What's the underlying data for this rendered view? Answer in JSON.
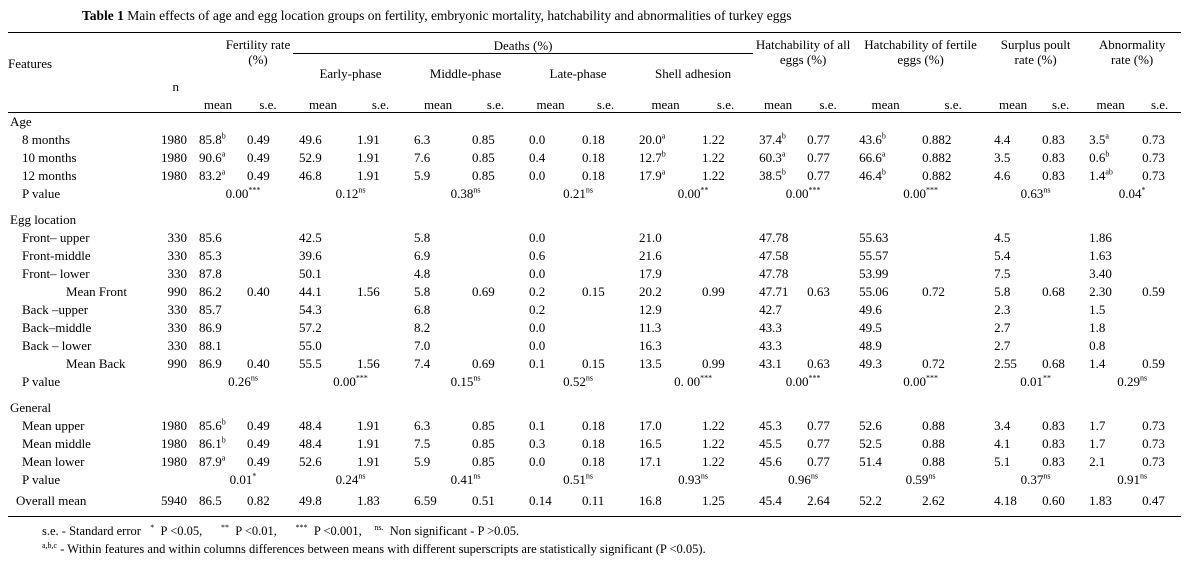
{
  "title": {
    "label": "Table 1",
    "text": " Main effects of age and egg location groups on fertility, embryonic mortality, hatchability and abnormalities of turkey eggs"
  },
  "header": {
    "features": "Features",
    "n": "n",
    "deaths": "Deaths  (%)",
    "columns": [
      "Fertility rate (%)",
      "Early-phase",
      "Middle-phase",
      "Late-phase",
      "Shell adhesion",
      "Hatchability of all eggs (%)",
      "Hatchability of fertile eggs (%)",
      "Surplus poult rate (%)",
      "Abnormality rate (%)"
    ],
    "mean": "mean",
    "se": "s.e."
  },
  "sections": [
    {
      "title": "Age",
      "rows": [
        {
          "label": "8 months",
          "n": "1980",
          "cells": [
            [
              "85.8",
              "b",
              "0.49"
            ],
            [
              "49.6",
              "",
              "1.91"
            ],
            [
              "6.3",
              "",
              "0.85"
            ],
            [
              "0.0",
              "",
              "0.18"
            ],
            [
              "20.0",
              "a",
              "1.22"
            ],
            [
              "37.4",
              "b",
              "0.77"
            ],
            [
              "43.6",
              "b",
              "0.882"
            ],
            [
              "4.4",
              "",
              "0.83"
            ],
            [
              "3.5",
              "a",
              "0.73"
            ]
          ]
        },
        {
          "label": "10 months",
          "n": "1980",
          "cells": [
            [
              "90.6",
              "a",
              "0.49"
            ],
            [
              "52.9",
              "",
              "1.91"
            ],
            [
              "7.6",
              "",
              "0.85"
            ],
            [
              "0.4",
              "",
              "0.18"
            ],
            [
              "12.7",
              "b",
              "1.22"
            ],
            [
              "60.3",
              "a",
              "0.77"
            ],
            [
              "66.6",
              "a",
              "0.882"
            ],
            [
              "3.5",
              "",
              "0.83"
            ],
            [
              "0.6",
              "b",
              "0.73"
            ]
          ]
        },
        {
          "label": "12 months",
          "n": "1980",
          "cells": [
            [
              "83.2",
              "a",
              "0.49"
            ],
            [
              "46.8",
              "",
              "1.91"
            ],
            [
              "5.9",
              "",
              "0.85"
            ],
            [
              "0.0",
              "",
              "0.18"
            ],
            [
              "17.9",
              "a",
              "1.22"
            ],
            [
              "38.5",
              "b",
              "0.77"
            ],
            [
              "46.4",
              "b",
              "0.882"
            ],
            [
              "4.6",
              "",
              "0.83"
            ],
            [
              "1.4",
              "ab",
              "0.73"
            ]
          ]
        }
      ],
      "p_label": "P value",
      "p": [
        [
          "0.00",
          "***"
        ],
        [
          "0.12",
          "ns"
        ],
        [
          "0.38",
          "ns"
        ],
        [
          "0.21",
          "ns"
        ],
        [
          "0.00",
          "**"
        ],
        [
          "0.00",
          "***"
        ],
        [
          "0.00",
          "***"
        ],
        [
          "0.63",
          "ns"
        ],
        [
          "0.04",
          "*"
        ]
      ]
    },
    {
      "title": "Egg location",
      "rows": [
        {
          "label": "Front– upper",
          "n": "330",
          "cells": [
            [
              "85.6",
              "",
              ""
            ],
            [
              "42.5",
              "",
              ""
            ],
            [
              "5.8",
              "",
              ""
            ],
            [
              "0.0",
              "",
              ""
            ],
            [
              "21.0",
              "",
              ""
            ],
            [
              "47.78",
              "",
              ""
            ],
            [
              "55.63",
              "",
              ""
            ],
            [
              "4.5",
              "",
              ""
            ],
            [
              "1.86",
              "",
              ""
            ]
          ]
        },
        {
          "label": "Front-middle",
          "n": "330",
          "cells": [
            [
              "85.3",
              "",
              ""
            ],
            [
              "39.6",
              "",
              ""
            ],
            [
              "6.9",
              "",
              ""
            ],
            [
              "0.6",
              "",
              ""
            ],
            [
              "21.6",
              "",
              ""
            ],
            [
              "47.58",
              "",
              ""
            ],
            [
              "55.57",
              "",
              ""
            ],
            [
              "5.4",
              "",
              ""
            ],
            [
              "1.63",
              "",
              ""
            ]
          ]
        },
        {
          "label": "Front– lower",
          "n": "330",
          "cells": [
            [
              "87.8",
              "",
              ""
            ],
            [
              "50.1",
              "",
              ""
            ],
            [
              "4.8",
              "",
              ""
            ],
            [
              "0.0",
              "",
              ""
            ],
            [
              "17.9",
              "",
              ""
            ],
            [
              "47.78",
              "",
              ""
            ],
            [
              "53.99",
              "",
              ""
            ],
            [
              "7.5",
              "",
              ""
            ],
            [
              "3.40",
              "",
              ""
            ]
          ]
        },
        {
          "label": "Mean Front",
          "sub": true,
          "n": "990",
          "cells": [
            [
              "86.2",
              "",
              "0.40"
            ],
            [
              "44.1",
              "",
              "1.56"
            ],
            [
              "5.8",
              "",
              "0.69"
            ],
            [
              "0.2",
              "",
              "0.15"
            ],
            [
              "20.2",
              "",
              "0.99"
            ],
            [
              "47.71",
              "",
              "0.63"
            ],
            [
              "55.06",
              "",
              "0.72"
            ],
            [
              "5.8",
              "",
              "0.68"
            ],
            [
              "2.30",
              "",
              "0.59"
            ]
          ]
        },
        {
          "label": "Back –upper",
          "n": "330",
          "cells": [
            [
              "85.7",
              "",
              ""
            ],
            [
              "54.3",
              "",
              ""
            ],
            [
              "6.8",
              "",
              ""
            ],
            [
              "0.2",
              "",
              ""
            ],
            [
              "12.9",
              "",
              ""
            ],
            [
              "42.7",
              "",
              ""
            ],
            [
              "49.6",
              "",
              ""
            ],
            [
              "2.3",
              "",
              ""
            ],
            [
              "1.5",
              "",
              ""
            ]
          ]
        },
        {
          "label": "Back–middle",
          "n": "330",
          "cells": [
            [
              "86.9",
              "",
              ""
            ],
            [
              "57.2",
              "",
              ""
            ],
            [
              "8.2",
              "",
              ""
            ],
            [
              "0.0",
              "",
              ""
            ],
            [
              "11.3",
              "",
              ""
            ],
            [
              "43.3",
              "",
              ""
            ],
            [
              "49.5",
              "",
              ""
            ],
            [
              "2.7",
              "",
              ""
            ],
            [
              "1.8",
              "",
              ""
            ]
          ]
        },
        {
          "label": "Back – lower",
          "n": "330",
          "cells": [
            [
              "88.1",
              "",
              ""
            ],
            [
              "55.0",
              "",
              ""
            ],
            [
              "7.0",
              "",
              ""
            ],
            [
              "0.0",
              "",
              ""
            ],
            [
              "16.3",
              "",
              ""
            ],
            [
              "43.3",
              "",
              ""
            ],
            [
              "48.9",
              "",
              ""
            ],
            [
              "2.7",
              "",
              ""
            ],
            [
              "0.8",
              "",
              ""
            ]
          ]
        },
        {
          "label": "Mean Back",
          "sub": true,
          "n": "990",
          "cells": [
            [
              "86.9",
              "",
              "0.40"
            ],
            [
              "55.5",
              "",
              "1.56"
            ],
            [
              "7.4",
              "",
              "0.69"
            ],
            [
              "0.1",
              "",
              "0.15"
            ],
            [
              "13.5",
              "",
              "0.99"
            ],
            [
              "43.1",
              "",
              "0.63"
            ],
            [
              "49.3",
              "",
              "0.72"
            ],
            [
              "2.55",
              "",
              "0.68"
            ],
            [
              "1.4",
              "",
              "0.59"
            ]
          ]
        }
      ],
      "p_label": "P value",
      "p": [
        [
          "0.26",
          "ns"
        ],
        [
          "0.00",
          "***"
        ],
        [
          "0.15",
          "ns"
        ],
        [
          "0.52",
          "ns"
        ],
        [
          "0. 00",
          "***"
        ],
        [
          "0.00",
          "***"
        ],
        [
          "0.00",
          "***"
        ],
        [
          "0.01",
          "**"
        ],
        [
          "0.29",
          "ns"
        ]
      ]
    },
    {
      "title": "General",
      "rows": [
        {
          "label": "Mean upper",
          "n": "1980",
          "cells": [
            [
              "85.6",
              "b",
              "0.49"
            ],
            [
              "48.4",
              "",
              "1.91"
            ],
            [
              "6.3",
              "",
              "0.85"
            ],
            [
              "0.1",
              "",
              "0.18"
            ],
            [
              "17.0",
              "",
              "1.22"
            ],
            [
              "45.3",
              "",
              "0.77"
            ],
            [
              "52.6",
              "",
              "0.88"
            ],
            [
              "3.4",
              "",
              "0.83"
            ],
            [
              "1.7",
              "",
              "0.73"
            ]
          ]
        },
        {
          "label": "Mean middle",
          "n": "1980",
          "cells": [
            [
              "86.1",
              "b",
              "0.49"
            ],
            [
              "48.4",
              "",
              "1.91"
            ],
            [
              "7.5",
              "",
              "0.85"
            ],
            [
              "0.3",
              "",
              "0.18"
            ],
            [
              "16.5",
              "",
              "1.22"
            ],
            [
              "45.5",
              "",
              "0.77"
            ],
            [
              "52.5",
              "",
              "0.88"
            ],
            [
              "4.1",
              "",
              "0.83"
            ],
            [
              "1.7",
              "",
              "0.73"
            ]
          ]
        },
        {
          "label": "Mean lower",
          "n": "1980",
          "cells": [
            [
              "87.9",
              "a",
              "0.49"
            ],
            [
              "52.6",
              "",
              "1.91"
            ],
            [
              "5.9",
              "",
              "0.85"
            ],
            [
              "0.0",
              "",
              "0.18"
            ],
            [
              "17.1",
              "",
              "1.22"
            ],
            [
              "45.6",
              "",
              "0.77"
            ],
            [
              "51.4",
              "",
              "0.88"
            ],
            [
              "5.1",
              "",
              "0.83"
            ],
            [
              "2.1",
              "",
              "0.73"
            ]
          ]
        }
      ],
      "p_label": "P value",
      "p": [
        [
          "0.01",
          "*"
        ],
        [
          "0.24",
          "ns"
        ],
        [
          "0.41",
          "ns"
        ],
        [
          "0.51",
          "ns"
        ],
        [
          "0.93",
          "ns"
        ],
        [
          "0.96",
          "ns"
        ],
        [
          "0.59",
          "ns"
        ],
        [
          "0.37",
          "ns"
        ],
        [
          "0.91",
          "ns"
        ]
      ]
    }
  ],
  "overall": {
    "label": "Overall mean",
    "n": "5940",
    "cells": [
      [
        "86.5",
        "",
        "0.82"
      ],
      [
        "49.8",
        "",
        "1.83"
      ],
      [
        "6.59",
        "",
        "0.51"
      ],
      [
        "0.14",
        "",
        "0.11"
      ],
      [
        "16.8",
        "",
        "1.25"
      ],
      [
        "45.4",
        "",
        "2.64"
      ],
      [
        "52.2",
        "",
        "2.62"
      ],
      [
        "4.18",
        "",
        "0.60"
      ],
      [
        "1.83",
        "",
        "0.47"
      ]
    ]
  },
  "footnotes": {
    "line1": [
      [
        "",
        "s.e. - Standard error   "
      ],
      [
        "*",
        "  P <0.05,      "
      ],
      [
        "**",
        "  P <0.01,      "
      ],
      [
        "***",
        "  P <0.001,    "
      ],
      [
        "ns.",
        "  Non significant - P >0.05."
      ]
    ],
    "line2_sup": "a,b,c",
    "line2": "  -  Within features and within columns differences between means with different superscripts are statistically significant (P <0.05)."
  }
}
